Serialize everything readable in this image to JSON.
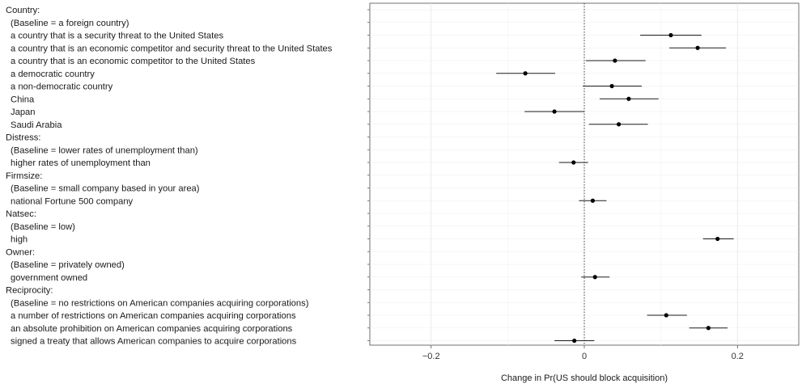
{
  "chart_data": {
    "type": "scatter",
    "style": "coefficient plot with horizontal confidence intervals",
    "xlabel": "Change in Pr(US should block acquisition)",
    "ylabel": "",
    "xlim": [
      -0.28,
      0.28
    ],
    "xticks": [
      {
        "value": -0.2,
        "label": "−0.2"
      },
      {
        "value": 0,
        "label": "0"
      },
      {
        "value": 0.2,
        "label": "0.2"
      }
    ],
    "reference_line": {
      "x": 0,
      "style": "dotted"
    },
    "grid": true,
    "rows": [
      {
        "label": "Country:",
        "kind": "heading"
      },
      {
        "label": "(Baseline = a foreign country)",
        "kind": "baseline"
      },
      {
        "label": "a country that is a security threat to the United States",
        "kind": "level",
        "estimate": 0.113,
        "lower": 0.073,
        "upper": 0.153
      },
      {
        "label": "a country that is an economic competitor and security threat to the United States",
        "kind": "level",
        "estimate": 0.148,
        "lower": 0.111,
        "upper": 0.185
      },
      {
        "label": "a country that is an economic competitor to the United States",
        "kind": "level",
        "estimate": 0.04,
        "lower": 0.002,
        "upper": 0.08
      },
      {
        "label": "a democratic country",
        "kind": "level",
        "estimate": -0.077,
        "lower": -0.115,
        "upper": -0.038
      },
      {
        "label": "a non-democratic country",
        "kind": "level",
        "estimate": 0.036,
        "lower": -0.002,
        "upper": 0.075
      },
      {
        "label": "China",
        "kind": "level",
        "estimate": 0.058,
        "lower": 0.02,
        "upper": 0.097
      },
      {
        "label": "Japan",
        "kind": "level",
        "estimate": -0.039,
        "lower": -0.078,
        "upper": 0.0
      },
      {
        "label": "Saudi Arabia",
        "kind": "level",
        "estimate": 0.045,
        "lower": 0.006,
        "upper": 0.083
      },
      {
        "label": "Distress:",
        "kind": "heading"
      },
      {
        "label": "(Baseline = lower rates of unemployment than)",
        "kind": "baseline"
      },
      {
        "label": "higher rates of unemployment than",
        "kind": "level",
        "estimate": -0.014,
        "lower": -0.033,
        "upper": 0.005
      },
      {
        "label": "Firmsize:",
        "kind": "heading"
      },
      {
        "label": "(Baseline = small company based in your area)",
        "kind": "baseline"
      },
      {
        "label": "national Fortune 500 company",
        "kind": "level",
        "estimate": 0.011,
        "lower": -0.007,
        "upper": 0.029
      },
      {
        "label": "Natsec:",
        "kind": "heading"
      },
      {
        "label": "(Baseline = low)",
        "kind": "baseline"
      },
      {
        "label": "high",
        "kind": "level",
        "estimate": 0.174,
        "lower": 0.155,
        "upper": 0.195
      },
      {
        "label": "Owner:",
        "kind": "heading"
      },
      {
        "label": "(Baseline = privately owned)",
        "kind": "baseline"
      },
      {
        "label": "government owned",
        "kind": "level",
        "estimate": 0.014,
        "lower": -0.004,
        "upper": 0.033
      },
      {
        "label": "Reciprocity:",
        "kind": "heading"
      },
      {
        "label": "(Baseline = no restrictions on American companies acquiring corporations)",
        "kind": "baseline"
      },
      {
        "label": "a number of restrictions on American companies acquiring corporations",
        "kind": "level",
        "estimate": 0.107,
        "lower": 0.082,
        "upper": 0.134
      },
      {
        "label": "an absolute prohibition on American companies acquiring corporations",
        "kind": "level",
        "estimate": 0.162,
        "lower": 0.137,
        "upper": 0.187
      },
      {
        "label": "signed a treaty that allows American companies to acquire corporations",
        "kind": "level",
        "estimate": -0.013,
        "lower": -0.039,
        "upper": 0.013
      }
    ]
  }
}
